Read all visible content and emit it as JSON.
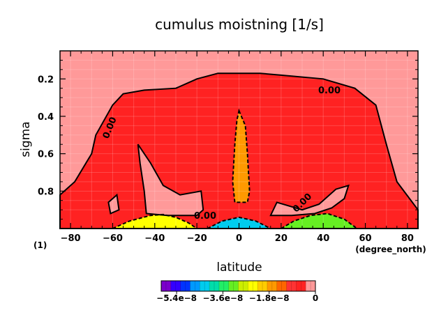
{
  "chart_data": {
    "type": "contour",
    "title": "cumulus moistning [1/s]",
    "xlabel": "latitude",
    "ylabel": "sigma",
    "x_unit": "(degree_north)",
    "figure_number": "(1)",
    "xlim": [
      -85,
      85
    ],
    "ylim": [
      1.0,
      0.05
    ],
    "x_ticks": [
      -80,
      -60,
      -40,
      -20,
      0,
      20,
      40,
      60,
      80
    ],
    "x_tick_labels": [
      "−80",
      "−60",
      "−40",
      "−20",
      "0",
      "20",
      "40",
      "60",
      "80"
    ],
    "y_ticks": [
      0.2,
      0.4,
      0.6,
      0.8
    ],
    "y_tick_labels": [
      "0.2",
      "0.4",
      "0.6",
      "0.8"
    ],
    "grid": true,
    "contour_labels": [
      "0.00",
      "0.00",
      "0.00",
      "0.00"
    ],
    "colorbar": {
      "min": -6e-08,
      "max": 0.0,
      "tick_values": [
        -5.4e-08,
        -3.6e-08,
        -1.8e-08,
        0
      ],
      "tick_labels": [
        "−5.4e−8",
        "−3.6e−8",
        "−1.8e−8",
        "0"
      ],
      "colors": [
        "#7b00cc",
        "#3300ff",
        "#0033ff",
        "#0099ff",
        "#00ccee",
        "#00ddaa",
        "#22ee66",
        "#66ee22",
        "#ccee00",
        "#ffff00",
        "#ffcc00",
        "#ff9900",
        "#ff6600",
        "#ff3333",
        "#ff2222",
        "#ff9999"
      ]
    },
    "regions": [
      {
        "name": "upper-stratosphere",
        "value_class": "positive",
        "color": "#ff9999",
        "boundary": [
          [
            -85,
            0.05
          ],
          [
            85,
            0.05
          ],
          [
            85,
            0.9
          ],
          [
            75,
            0.75
          ],
          [
            70,
            0.55
          ],
          [
            65,
            0.34
          ],
          [
            55,
            0.25
          ],
          [
            40,
            0.2
          ],
          [
            20,
            0.18
          ],
          [
            10,
            0.17
          ],
          [
            -10,
            0.17
          ],
          [
            -20,
            0.2
          ],
          [
            -30,
            0.25
          ],
          [
            -45,
            0.26
          ],
          [
            -55,
            0.28
          ],
          [
            -60,
            0.34
          ],
          [
            -68,
            0.5
          ],
          [
            -70,
            0.6
          ],
          [
            -78,
            0.75
          ],
          [
            -85,
            0.82
          ]
        ]
      },
      {
        "name": "troposphere-main",
        "value_class": "slightly-negative",
        "color": "#ff2222",
        "boundary": [
          [
            -85,
            0.82
          ],
          [
            -78,
            0.75
          ],
          [
            -70,
            0.6
          ],
          [
            -68,
            0.5
          ],
          [
            -60,
            0.34
          ],
          [
            -55,
            0.28
          ],
          [
            -45,
            0.26
          ],
          [
            -30,
            0.25
          ],
          [
            -20,
            0.2
          ],
          [
            -10,
            0.17
          ],
          [
            10,
            0.17
          ],
          [
            20,
            0.18
          ],
          [
            40,
            0.2
          ],
          [
            55,
            0.25
          ],
          [
            65,
            0.34
          ],
          [
            70,
            0.55
          ],
          [
            75,
            0.75
          ],
          [
            85,
            0.9
          ],
          [
            85,
            1.0
          ],
          [
            -85,
            1.0
          ]
        ]
      },
      {
        "name": "equatorial-tongue",
        "value_class": "negative",
        "color": "#ff9900",
        "boundary": [
          [
            0,
            0.37
          ],
          [
            3,
            0.45
          ],
          [
            4,
            0.6
          ],
          [
            5,
            0.8
          ],
          [
            4,
            0.86
          ],
          [
            -2,
            0.86
          ],
          [
            -3,
            0.75
          ],
          [
            -2,
            0.55
          ],
          [
            -1,
            0.42
          ]
        ]
      },
      {
        "name": "southern-weak-cell",
        "value_class": "positive",
        "color": "#ff9999",
        "boundary": [
          [
            -48,
            0.55
          ],
          [
            -42,
            0.65
          ],
          [
            -36,
            0.77
          ],
          [
            -28,
            0.82
          ],
          [
            -18,
            0.8
          ],
          [
            -17,
            0.9
          ],
          [
            -20,
            0.93
          ],
          [
            -34,
            0.93
          ],
          [
            -44,
            0.92
          ],
          [
            -45,
            0.8
          ],
          [
            -47,
            0.65
          ]
        ]
      },
      {
        "name": "southern-small-cell",
        "value_class": "positive",
        "color": "#ff9999",
        "boundary": [
          [
            -62,
            0.86
          ],
          [
            -58,
            0.82
          ],
          [
            -57,
            0.9
          ],
          [
            -61,
            0.92
          ]
        ]
      },
      {
        "name": "northern-weak-cell",
        "value_class": "positive",
        "color": "#ff9999",
        "boundary": [
          [
            18,
            0.86
          ],
          [
            30,
            0.9
          ],
          [
            38,
            0.87
          ],
          [
            46,
            0.79
          ],
          [
            52,
            0.77
          ],
          [
            50,
            0.84
          ],
          [
            44,
            0.89
          ],
          [
            36,
            0.92
          ],
          [
            25,
            0.93
          ],
          [
            15,
            0.93
          ]
        ]
      },
      {
        "name": "southern-near-surface-cell",
        "value_class": "strongly-negative",
        "color": "#ffff00",
        "boundary": [
          [
            -60,
            1.0
          ],
          [
            -52,
            0.96
          ],
          [
            -42,
            0.93
          ],
          [
            -36,
            0.925
          ],
          [
            -30,
            0.94
          ],
          [
            -24,
            0.97
          ],
          [
            -20,
            1.0
          ]
        ]
      },
      {
        "name": "equatorial-near-surface-cell",
        "value_class": "strongly-negative",
        "color": "#00ccee",
        "boundary": [
          [
            -15,
            1.0
          ],
          [
            -8,
            0.96
          ],
          [
            0,
            0.94
          ],
          [
            8,
            0.96
          ],
          [
            15,
            1.0
          ]
        ]
      },
      {
        "name": "northern-near-surface-cell",
        "value_class": "strongly-negative",
        "color": "#66ee22",
        "boundary": [
          [
            20,
            1.0
          ],
          [
            26,
            0.96
          ],
          [
            34,
            0.93
          ],
          [
            42,
            0.92
          ],
          [
            50,
            0.95
          ],
          [
            56,
            1.0
          ]
        ]
      }
    ]
  }
}
